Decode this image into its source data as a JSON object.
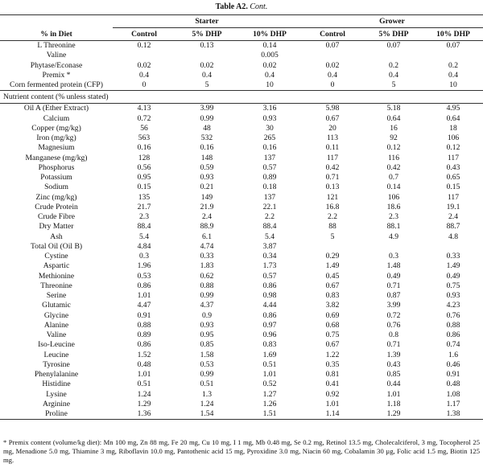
{
  "caption": {
    "label": "Table A2.",
    "text": "Cont."
  },
  "header": {
    "groups": [
      "Starter",
      "Grower"
    ],
    "columns": [
      "% in Diet",
      "Control",
      "5% DHP",
      "10% DHP",
      "Control",
      "5% DHP",
      "10% DHP"
    ]
  },
  "diet_rows": [
    {
      "label": "L Threonine",
      "values": [
        0.12,
        0.13,
        0.14,
        0.07,
        0.07,
        0.07
      ]
    },
    {
      "label": "Valine",
      "values": [
        null,
        null,
        0.005,
        null,
        null,
        null
      ]
    },
    {
      "label": "Phytase/Econase",
      "values": [
        0.02,
        0.02,
        0.02,
        0.02,
        0.2,
        0.2
      ]
    },
    {
      "label": "Premix *",
      "values": [
        0.4,
        0.4,
        0.4,
        0.4,
        0.4,
        0.4
      ]
    },
    {
      "label": "Corn fermented protein (CFP)",
      "values": [
        0,
        5,
        10,
        0,
        5,
        10
      ]
    }
  ],
  "nutrient_heading": "Nutrient content (% unless stated)",
  "nutrient_rows": [
    {
      "label": "Oil A (Ether Extract)",
      "values": [
        4.13,
        3.99,
        3.16,
        5.98,
        5.18,
        4.95
      ]
    },
    {
      "label": "Calcium",
      "values": [
        0.72,
        0.99,
        0.93,
        0.67,
        0.64,
        0.64
      ]
    },
    {
      "label": "Copper (mg/kg)",
      "values": [
        56,
        48,
        30,
        20,
        16,
        18
      ]
    },
    {
      "label": "Iron (mg/kg)",
      "values": [
        563,
        532,
        265,
        113,
        92,
        106
      ]
    },
    {
      "label": "Magnesium",
      "values": [
        0.16,
        0.16,
        0.16,
        0.11,
        0.12,
        0.12
      ]
    },
    {
      "label": "Manganese (mg/kg)",
      "values": [
        128,
        148,
        137,
        117,
        116,
        117
      ]
    },
    {
      "label": "Phosphorus",
      "values": [
        0.56,
        0.59,
        0.57,
        0.42,
        0.42,
        0.43
      ]
    },
    {
      "label": "Potassium",
      "values": [
        0.95,
        0.93,
        0.89,
        0.71,
        0.7,
        0.65
      ]
    },
    {
      "label": "Sodium",
      "values": [
        0.15,
        0.21,
        0.18,
        0.13,
        0.14,
        0.15
      ]
    },
    {
      "label": "Zinc (mg/kg)",
      "values": [
        135,
        149,
        137,
        121,
        106,
        117
      ]
    },
    {
      "label": "Crude Protein",
      "values": [
        21.7,
        21.9,
        22.1,
        16.8,
        18.6,
        19.1
      ]
    },
    {
      "label": "Crude Fibre",
      "values": [
        2.3,
        2.4,
        2.2,
        2.2,
        2.3,
        2.4
      ]
    },
    {
      "label": "Dry Matter",
      "values": [
        88.4,
        88.9,
        88.4,
        88,
        88.1,
        88.7
      ]
    },
    {
      "label": "Ash",
      "values": [
        5.4,
        6.1,
        5.4,
        5,
        4.9,
        4.8
      ]
    },
    {
      "label": "Total Oil (Oil B)",
      "values": [
        4.84,
        4.74,
        3.87,
        null,
        null,
        null
      ]
    },
    {
      "label": "Cystine",
      "values": [
        0.3,
        0.33,
        0.34,
        0.29,
        0.3,
        0.33
      ]
    },
    {
      "label": "Aspartic",
      "values": [
        1.96,
        1.83,
        1.73,
        1.49,
        1.48,
        1.49
      ]
    },
    {
      "label": "Methionine",
      "values": [
        0.53,
        0.62,
        0.57,
        0.45,
        0.49,
        0.49
      ]
    },
    {
      "label": "Threonine",
      "values": [
        0.86,
        0.88,
        0.86,
        0.67,
        0.71,
        0.75
      ]
    },
    {
      "label": "Serine",
      "values": [
        1.01,
        0.99,
        0.98,
        0.83,
        0.87,
        0.93
      ]
    },
    {
      "label": "Glutamic",
      "values": [
        4.47,
        4.37,
        4.44,
        3.82,
        3.99,
        4.23
      ]
    },
    {
      "label": "Glycine",
      "values": [
        0.91,
        0.9,
        0.86,
        0.69,
        0.72,
        0.76
      ]
    },
    {
      "label": "Alanine",
      "values": [
        0.88,
        0.93,
        0.97,
        0.68,
        0.76,
        0.88
      ]
    },
    {
      "label": "Valine",
      "values": [
        0.89,
        0.95,
        0.96,
        0.75,
        0.8,
        0.86
      ]
    },
    {
      "label": "Iso-Leucine",
      "values": [
        0.86,
        0.85,
        0.83,
        0.67,
        0.71,
        0.74
      ]
    },
    {
      "label": "Leucine",
      "values": [
        1.52,
        1.58,
        1.69,
        1.22,
        1.39,
        1.6
      ]
    },
    {
      "label": "Tyrosine",
      "values": [
        0.48,
        0.53,
        0.51,
        0.35,
        0.43,
        0.46
      ]
    },
    {
      "label": "Phenylalanine",
      "values": [
        1.01,
        0.99,
        1.01,
        0.81,
        0.85,
        0.91
      ]
    },
    {
      "label": "Histidine",
      "values": [
        0.51,
        0.51,
        0.52,
        0.41,
        0.44,
        0.48
      ]
    },
    {
      "label": "Lysine",
      "values": [
        1.24,
        1.3,
        1.27,
        0.92,
        1.01,
        1.08
      ]
    },
    {
      "label": "Arginine",
      "values": [
        1.29,
        1.24,
        1.26,
        1.01,
        1.18,
        1.17
      ]
    },
    {
      "label": "Proline",
      "values": [
        1.36,
        1.54,
        1.51,
        1.14,
        1.29,
        1.38
      ]
    }
  ],
  "footnote": "* Premix content (volume/kg diet): Mn 100 mg, Zn 88 mg, Fe 20 mg, Cu 10 mg, I 1 mg, Mb 0.48 mg, Se 0.2 mg, Retinol 13.5 mg, Cholecalciferol, 3 mg, Tocopherol 25 mg, Menadione 5.0 mg, Thiamine 3 mg, Riboflavin 10.0 mg, Pantothenic acid 15 mg, Pyroxidine 3.0 mg, Niacin 60 mg, Cobalamin 30 µg, Folic acid 1.5 mg, Biotin 125 mg."
}
